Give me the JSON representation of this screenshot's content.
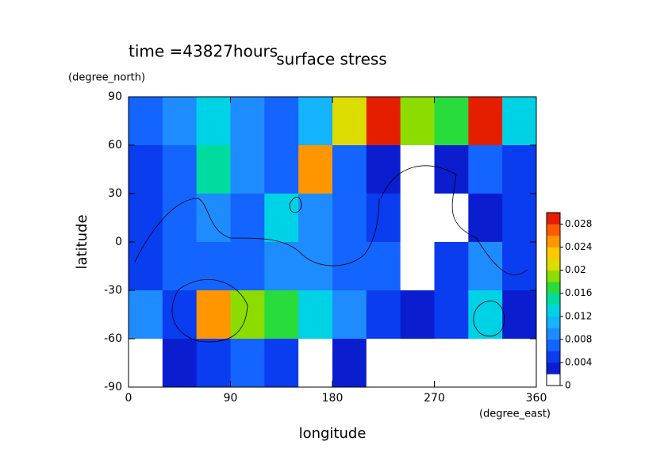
{
  "chart_data": {
    "type": "heatmap",
    "title": "surface stress",
    "subtitle": "time =43827hours",
    "x_label": "longitude",
    "y_label": "latitude",
    "x_unit": "(degree_east)",
    "y_unit": "(degree_north)",
    "x": [
      15,
      45,
      75,
      105,
      135,
      165,
      195,
      225,
      255,
      285,
      315,
      345
    ],
    "y": [
      75,
      45,
      15,
      -15,
      -45,
      -75
    ],
    "z": [
      [
        0.006,
        0.008,
        0.012,
        0.008,
        0.006,
        0.01,
        0.02,
        0.03,
        0.018,
        0.016,
        0.028,
        0.012
      ],
      [
        0.004,
        0.006,
        0.014,
        0.008,
        0.006,
        0.024,
        0.006,
        0.002,
        0,
        0.002,
        0.006,
        0.004
      ],
      [
        0.004,
        0.006,
        0.008,
        0.006,
        0.012,
        0.008,
        0.006,
        0.004,
        0,
        0,
        0.002,
        0.004
      ],
      [
        0.004,
        0.006,
        0.006,
        0.006,
        0.008,
        0.008,
        0.006,
        0.006,
        0,
        0.004,
        0.008,
        0.004
      ],
      [
        0.008,
        0.004,
        0.024,
        0.018,
        0.016,
        0.012,
        0.008,
        0.004,
        0.002,
        0.004,
        0.012,
        0.002
      ],
      [
        0,
        0.002,
        0.004,
        0.006,
        0.004,
        0,
        0.002,
        0,
        0,
        0,
        0,
        0
      ]
    ],
    "xlim": [
      0,
      360
    ],
    "xticks": [
      0,
      90,
      180,
      270,
      360
    ],
    "ylim": [
      -90,
      90
    ],
    "yticks": [
      -90,
      -60,
      -30,
      0,
      30,
      60,
      90
    ],
    "levels": [
      0,
      0.002,
      0.004,
      0.006,
      0.008,
      0.01,
      0.012,
      0.014,
      0.016,
      0.018,
      0.02,
      0.022,
      0.024,
      0.026,
      0.028,
      0.03
    ],
    "colors": [
      "#ffffff",
      "#0a1ecf",
      "#0a3cf0",
      "#1464ff",
      "#1e8cff",
      "#14b4ff",
      "#00d2e6",
      "#00dca0",
      "#28dc3c",
      "#8cdc00",
      "#dcdc00",
      "#ffc800",
      "#ff9600",
      "#ff5a00",
      "#e61e00"
    ],
    "colorbar_ticks": [
      0,
      0.004,
      0.008,
      0.012,
      0.016,
      0.02,
      0.024,
      0.028
    ]
  }
}
